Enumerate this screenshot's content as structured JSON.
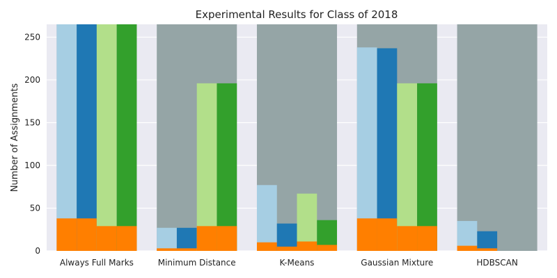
{
  "chart_data": {
    "type": "bar",
    "title": "Experimental Results for Class of 2018",
    "xlabel": "",
    "ylabel": "Number of Assignments",
    "ylim": [
      0,
      265
    ],
    "yticks": [
      0,
      50,
      100,
      150,
      200,
      250
    ],
    "grid": true,
    "legend": "none",
    "categories": [
      "Always Full Marks",
      "Minimum Distance",
      "K-Means",
      "Gaussian Mixture",
      "HDBSCAN"
    ],
    "background_bar": {
      "value": 265,
      "color": "#95a5a6"
    },
    "series": [
      {
        "color": "#a6cee3",
        "values": [
          265,
          27,
          77,
          238,
          35
        ]
      },
      {
        "color": "#1f78b4",
        "values": [
          265,
          27,
          32,
          237,
          23
        ]
      },
      {
        "color": "#b2df8a",
        "values": [
          265,
          196,
          67,
          196,
          0
        ]
      },
      {
        "color": "#33a02c",
        "values": [
          265,
          196,
          36,
          196,
          0
        ]
      }
    ],
    "overlay_series": {
      "color": "#ff7f00",
      "values": [
        [
          38,
          38,
          29,
          29
        ],
        [
          3,
          3,
          29,
          29
        ],
        [
          10,
          5,
          11,
          7
        ],
        [
          38,
          38,
          29,
          29
        ],
        [
          6,
          3,
          0,
          0
        ]
      ]
    },
    "colors": {
      "plot_background": "#eaeaf2",
      "grid": "#ffffff",
      "text": "#222222"
    }
  }
}
